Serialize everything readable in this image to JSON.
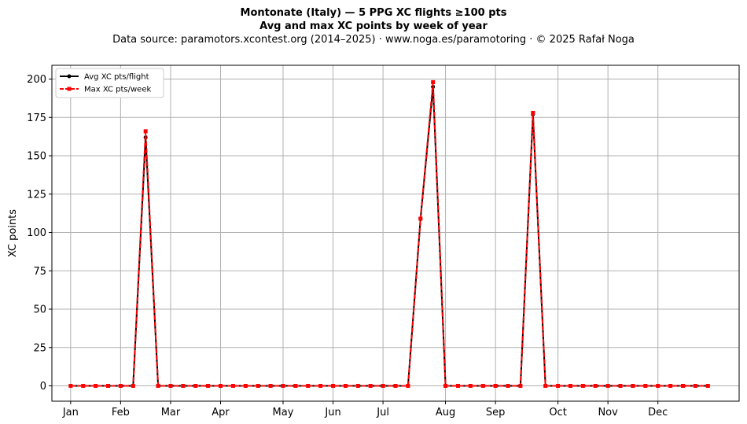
{
  "titles": {
    "line1": "Montonate (Italy)  —  5 PPG XC flights ≥100 pts",
    "line2": "Avg and max XC points by week of year",
    "line3": "Data source: paramotors.xcontest.org (2014–2025)  ·  www.noga.es/paramotoring  ·  © 2025 Rafał Noga"
  },
  "chart_data": {
    "type": "line",
    "title": "Montonate (Italy)  —  5 PPG XC flights ≥100 pts",
    "subtitle": "Avg and max XC points by week of year",
    "xlabel": "",
    "ylabel": "XC points",
    "x": [
      1,
      2,
      3,
      4,
      5,
      6,
      7,
      8,
      9,
      10,
      11,
      12,
      13,
      14,
      15,
      16,
      17,
      18,
      19,
      20,
      21,
      22,
      23,
      24,
      25,
      26,
      27,
      28,
      29,
      30,
      31,
      32,
      33,
      34,
      35,
      36,
      37,
      38,
      39,
      40,
      41,
      42,
      43,
      44,
      45,
      46,
      47,
      48,
      49,
      50,
      51,
      52
    ],
    "xlim": [
      -0.5,
      54.5
    ],
    "ylim": [
      -10,
      209
    ],
    "yticks": [
      0,
      25,
      50,
      75,
      100,
      125,
      150,
      175,
      200
    ],
    "month_ticks": [
      {
        "label": "Jan",
        "week": 1
      },
      {
        "label": "Feb",
        "week": 5
      },
      {
        "label": "Mar",
        "week": 9
      },
      {
        "label": "Apr",
        "week": 13
      },
      {
        "label": "May",
        "week": 18
      },
      {
        "label": "Jun",
        "week": 22
      },
      {
        "label": "Jul",
        "week": 26
      },
      {
        "label": "Aug",
        "week": 31
      },
      {
        "label": "Sep",
        "week": 35
      },
      {
        "label": "Oct",
        "week": 40
      },
      {
        "label": "Nov",
        "week": 44
      },
      {
        "label": "Dec",
        "week": 48
      }
    ],
    "grid": true,
    "legend_position": "top-left",
    "series": [
      {
        "name": "Avg XC pts/flight",
        "color": "#000000",
        "style": "solid",
        "marker": "circle",
        "values": [
          0,
          0,
          0,
          0,
          0,
          0,
          162,
          0,
          0,
          0,
          0,
          0,
          0,
          0,
          0,
          0,
          0,
          0,
          0,
          0,
          0,
          0,
          0,
          0,
          0,
          0,
          0,
          0,
          109,
          195,
          0,
          0,
          0,
          0,
          0,
          0,
          0,
          177,
          0,
          0,
          0,
          0,
          0,
          0,
          0,
          0,
          0,
          0,
          0,
          0,
          0,
          0
        ]
      },
      {
        "name": "Max XC pts/week",
        "color": "#ff0000",
        "style": "dashed",
        "marker": "square",
        "values": [
          0,
          0,
          0,
          0,
          0,
          0,
          166,
          0,
          0,
          0,
          0,
          0,
          0,
          0,
          0,
          0,
          0,
          0,
          0,
          0,
          0,
          0,
          0,
          0,
          0,
          0,
          0,
          0,
          109,
          198,
          0,
          0,
          0,
          0,
          0,
          0,
          0,
          178,
          0,
          0,
          0,
          0,
          0,
          0,
          0,
          0,
          0,
          0,
          0,
          0,
          0,
          0
        ]
      }
    ]
  }
}
